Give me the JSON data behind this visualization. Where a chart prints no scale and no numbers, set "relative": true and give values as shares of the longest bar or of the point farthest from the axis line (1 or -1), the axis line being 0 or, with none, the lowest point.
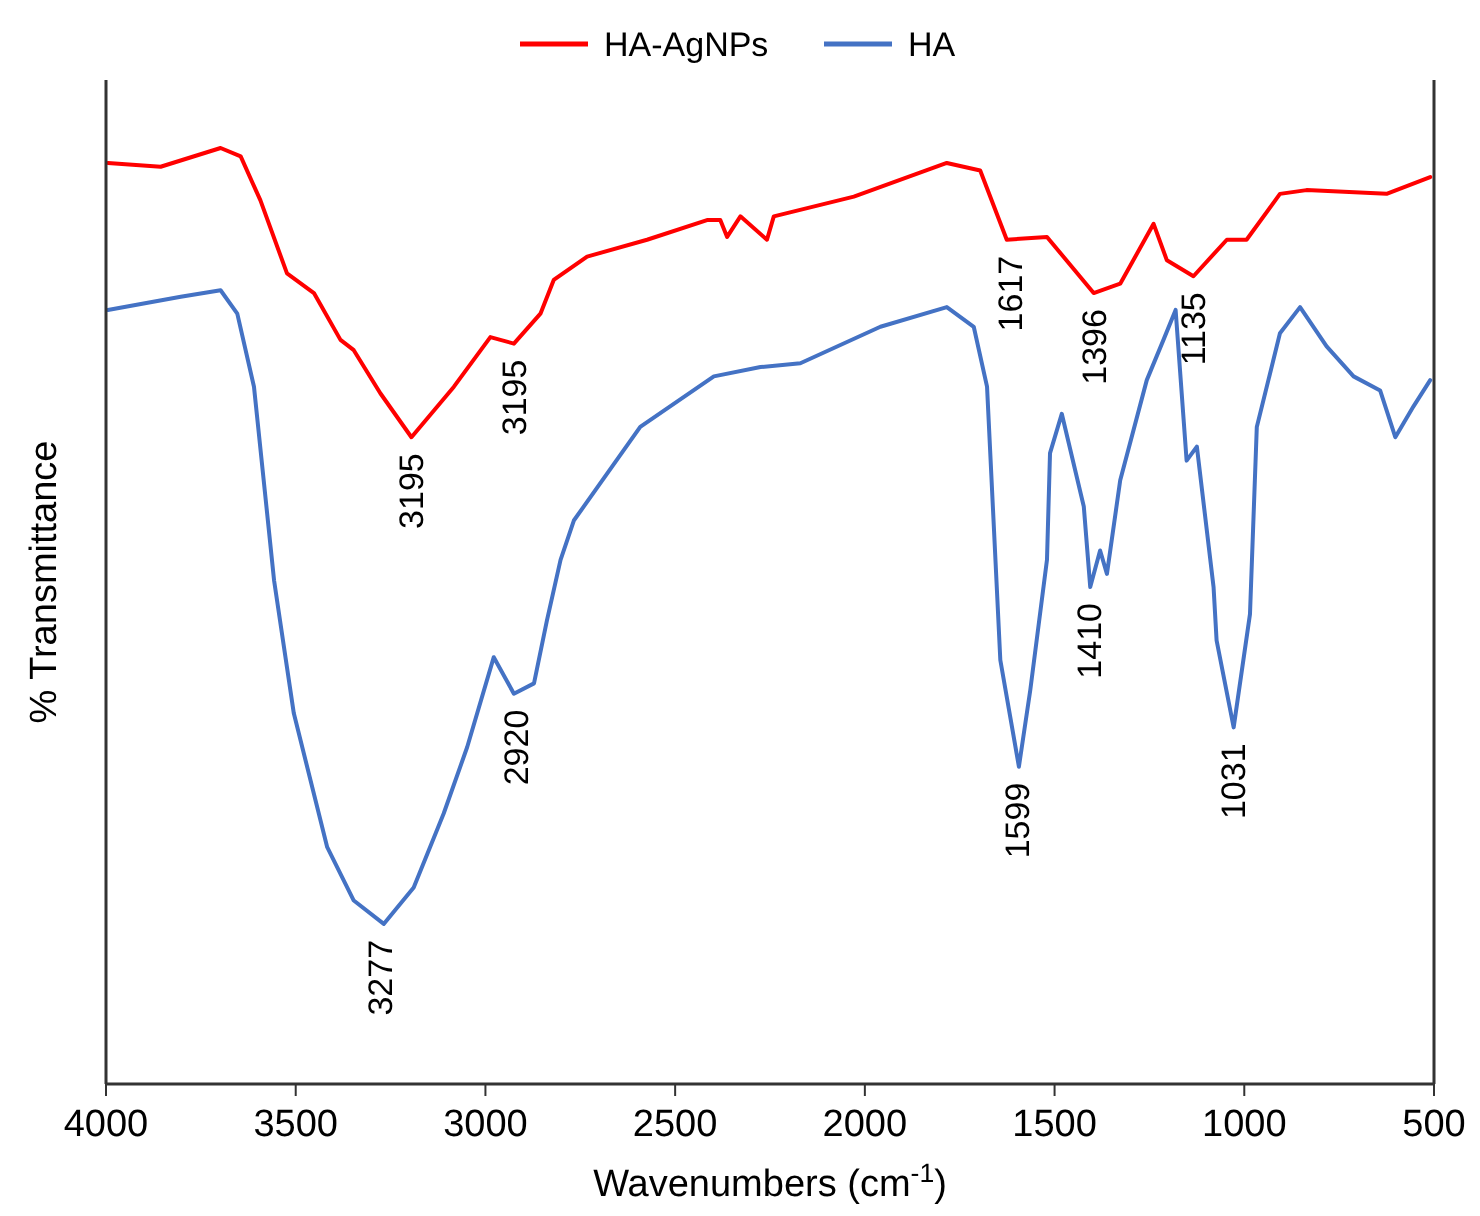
{
  "chart_data": {
    "type": "line",
    "relative": true,
    "xlabel": "Wavenumbers (cm$^{-1}$)",
    "ylabel": "% Transmittance",
    "xlim": [
      4000,
      500
    ],
    "xticks": [
      4000,
      3500,
      3000,
      2500,
      2000,
      1500,
      1000,
      500
    ],
    "legend": "top",
    "series": [
      {
        "name": "HA-AgNPs",
        "color": "#ff0000",
        "x": [
          3995,
          3856,
          3698,
          3645,
          3593,
          3523,
          3452,
          3382,
          3347,
          3277,
          3195,
          3083,
          2987,
          2925,
          2855,
          2820,
          2732,
          2574,
          2416,
          2381,
          2363,
          2328,
          2258,
          2240,
          2029,
          1784,
          1696,
          1626,
          1520,
          1397,
          1327,
          1239,
          1204,
          1134,
          1046,
          994,
          906,
          836,
          625,
          510
        ],
        "values": [
          0.984,
          0.98,
          1,
          0.991,
          0.944,
          0.866,
          0.845,
          0.795,
          0.784,
          0.738,
          0.691,
          0.745,
          0.798,
          0.791,
          0.823,
          0.859,
          0.884,
          0.902,
          0.923,
          0.923,
          0.905,
          0.927,
          0.902,
          0.927,
          0.948,
          0.984,
          0.976,
          0.902,
          0.905,
          0.845,
          0.855,
          0.919,
          0.88,
          0.863,
          0.902,
          0.902,
          0.951,
          0.955,
          0.951,
          0.969
        ]
      },
      {
        "name": "HA",
        "color": "#4472c4",
        "x": [
          3995,
          3803,
          3698,
          3654,
          3610,
          3557,
          3505,
          3417,
          3347,
          3268,
          3189,
          3110,
          3048,
          2978,
          2925,
          2872,
          2838,
          2802,
          2767,
          2592,
          2398,
          2275,
          2170,
          1959,
          1784,
          1713,
          1678,
          1643,
          1594,
          1564,
          1520,
          1512,
          1481,
          1423,
          1406,
          1380,
          1362,
          1327,
          1257,
          1213,
          1181,
          1152,
          1125,
          1081,
          1073,
          1028,
          985,
          967,
          906,
          853,
          783,
          712,
          642,
          602,
          554,
          510
        ],
        "values": [
          0.827,
          0.841,
          0.848,
          0.823,
          0.745,
          0.538,
          0.396,
          0.253,
          0.196,
          0.171,
          0.21,
          0.289,
          0.36,
          0.456,
          0.417,
          0.428,
          0.495,
          0.56,
          0.602,
          0.702,
          0.756,
          0.766,
          0.77,
          0.809,
          0.83,
          0.809,
          0.745,
          0.453,
          0.339,
          0.421,
          0.56,
          0.674,
          0.716,
          0.617,
          0.531,
          0.57,
          0.545,
          0.645,
          0.752,
          0.795,
          0.827,
          0.666,
          0.681,
          0.531,
          0.474,
          0.381,
          0.502,
          0.702,
          0.802,
          0.83,
          0.788,
          0.756,
          0.741,
          0.691,
          0.724,
          0.752
        ]
      }
    ],
    "annotations": [
      {
        "text": "3195",
        "x": 3195,
        "y": 0.691
      },
      {
        "text": "3195",
        "x": 2925,
        "y": 0.791
      },
      {
        "text": "1617",
        "x": 1617,
        "y": 0.902
      },
      {
        "text": "1396",
        "x": 1396,
        "y": 0.845
      },
      {
        "text": "1135",
        "x": 1135,
        "y": 0.863
      },
      {
        "text": "3277",
        "x": 3277,
        "y": 0.171
      },
      {
        "text": "2920",
        "x": 2920,
        "y": 0.417
      },
      {
        "text": "1599",
        "x": 1599,
        "y": 0.339
      },
      {
        "text": "1410",
        "x": 1410,
        "y": 0.531
      },
      {
        "text": "1031",
        "x": 1031,
        "y": 0.381
      }
    ]
  }
}
